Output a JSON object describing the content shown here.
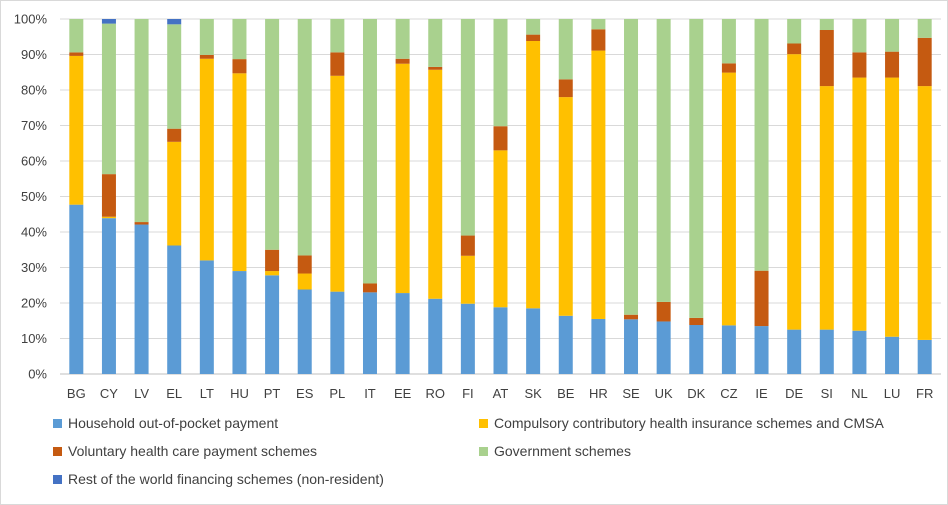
{
  "chart_data": {
    "type": "bar",
    "stacked": true,
    "normalized": true,
    "categories": [
      "BG",
      "CY",
      "LV",
      "EL",
      "LT",
      "HU",
      "PT",
      "ES",
      "PL",
      "IT",
      "EE",
      "RO",
      "FI",
      "AT",
      "SK",
      "BE",
      "HR",
      "SE",
      "UK",
      "DK",
      "CZ",
      "IE",
      "DE",
      "SI",
      "NL",
      "LU",
      "FR"
    ],
    "series": [
      {
        "name": "Household out-of-pocket payment",
        "color": "#5b9bd5",
        "values": [
          47.7,
          43.9,
          42.1,
          36.2,
          32.0,
          29.0,
          27.8,
          23.8,
          23.2,
          23.0,
          22.8,
          21.2,
          19.8,
          18.8,
          18.5,
          16.4,
          15.5,
          15.4,
          14.8,
          13.8,
          13.7,
          13.5,
          12.5,
          12.5,
          12.2,
          10.5,
          9.6
        ]
      },
      {
        "name": "Compulsory contributory health insurance schemes and CMSA",
        "color": "#ffc000",
        "values": [
          41.9,
          0.4,
          0,
          29.2,
          56.8,
          55.7,
          1.2,
          4.5,
          60.8,
          0,
          64.6,
          64.5,
          13.5,
          44.2,
          75.3,
          61.6,
          75.6,
          0,
          0,
          0,
          71.2,
          0,
          77.6,
          68.6,
          71.3,
          73.0,
          71.5
        ]
      },
      {
        "name": "Voluntary health care payment schemes",
        "color": "#c55a11",
        "values": [
          1.0,
          12.0,
          0.7,
          3.7,
          1.1,
          4.0,
          6.0,
          5.1,
          6.6,
          2.5,
          1.4,
          0.8,
          5.7,
          6.8,
          1.8,
          5.0,
          6.0,
          1.3,
          5.5,
          2.0,
          2.6,
          15.6,
          3.0,
          15.8,
          7.1,
          7.3,
          13.6
        ]
      },
      {
        "name": "Government schemes",
        "color": "#a9d18e",
        "values": [
          9.4,
          42.4,
          57.2,
          29.4,
          10.1,
          11.3,
          65.0,
          66.6,
          9.4,
          74.5,
          11.2,
          13.5,
          61.0,
          30.2,
          4.4,
          17.0,
          2.9,
          83.3,
          79.7,
          84.2,
          12.5,
          70.9,
          6.9,
          3.1,
          9.4,
          9.2,
          5.3
        ]
      },
      {
        "name": "Rest of the world financing schemes (non-resident)",
        "color": "#4472c4",
        "values": [
          0,
          1.3,
          0,
          1.5,
          0,
          0,
          0,
          0,
          0,
          0,
          0,
          0,
          0,
          0,
          0,
          0,
          0,
          0,
          0,
          0,
          0,
          0,
          0,
          0,
          0,
          0,
          0
        ]
      }
    ],
    "ylim": [
      0,
      100
    ],
    "yticks": [
      "0%",
      "10%",
      "20%",
      "30%",
      "40%",
      "50%",
      "60%",
      "70%",
      "80%",
      "90%",
      "100%"
    ],
    "grid": true,
    "legend_position": "bottom",
    "title": "",
    "xlabel": "",
    "ylabel": ""
  }
}
